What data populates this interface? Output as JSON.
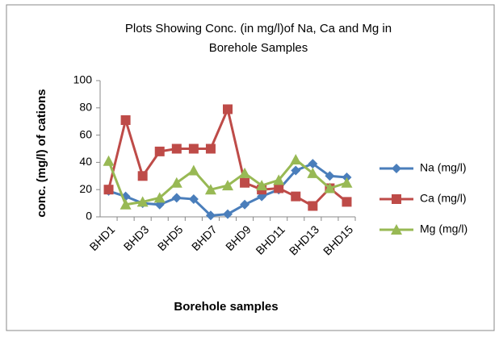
{
  "chart_data": {
    "type": "line",
    "title": [
      "Plots Showing  Conc. (in mg/l)of Na, Ca and Mg in",
      "Borehole Samples"
    ],
    "x_label": "Borehole samples",
    "y_label": "conc.  (mg/l) of cations",
    "categories": [
      "BHD1",
      null,
      "BHD3",
      null,
      "BHD5",
      null,
      "BHD7",
      null,
      "BHD9",
      null,
      "BHD11",
      null,
      "BHD13",
      null,
      "BHD15"
    ],
    "series": [
      {
        "name": "Na (mg/l)",
        "color": "#4a7ebb",
        "marker": "diamond",
        "values": [
          19,
          15,
          10,
          9,
          14,
          13,
          1,
          2,
          9,
          15,
          20,
          34,
          39,
          30,
          29
        ]
      },
      {
        "name": "Ca (mg/l)",
        "color": "#be4b48",
        "marker": "square",
        "values": [
          20,
          71,
          30,
          48,
          50,
          50,
          50,
          79,
          25,
          20,
          21,
          15,
          8,
          21,
          11
        ]
      },
      {
        "name": "Mg (mg/l)",
        "color": "#98b954",
        "marker": "triangle",
        "values": [
          41,
          9,
          11,
          14,
          25,
          34,
          20,
          23,
          32,
          23,
          27,
          42,
          32,
          21,
          25
        ]
      }
    ],
    "ylim": [
      0,
      100
    ],
    "yticks": [
      0,
      20,
      40,
      60,
      80,
      100
    ],
    "grid": false,
    "legend": "right"
  }
}
